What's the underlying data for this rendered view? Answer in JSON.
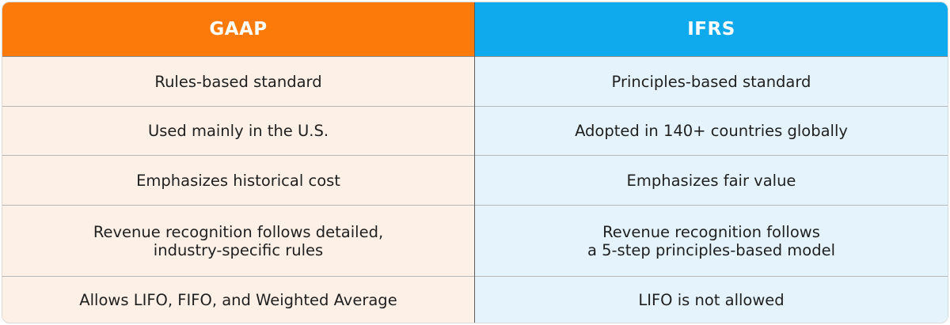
{
  "headers": {
    "gaap": "GAAP",
    "ifrs": "IFRS"
  },
  "rows": [
    {
      "gaap": "Rules-based standard",
      "ifrs": "Principles-based standard"
    },
    {
      "gaap": "Used mainly in the U.S.",
      "ifrs": "Adopted in 140+ countries globally"
    },
    {
      "gaap": "Emphasizes historical cost",
      "ifrs": "Emphasizes fair value"
    },
    {
      "gaap": "Revenue recognition follows detailed,\nindustry-specific rules",
      "ifrs": "Revenue recognition follows\na 5-step principles-based model"
    },
    {
      "gaap": "Allows LIFO, FIFO, and Weighted Average",
      "ifrs": "LIFO is not allowed"
    }
  ],
  "colors": {
    "gaap_header": "#fc7a09",
    "ifrs_header": "#0fa9ed",
    "gaap_body": "#fdf0e6",
    "ifrs_body": "#e5f4fc"
  }
}
